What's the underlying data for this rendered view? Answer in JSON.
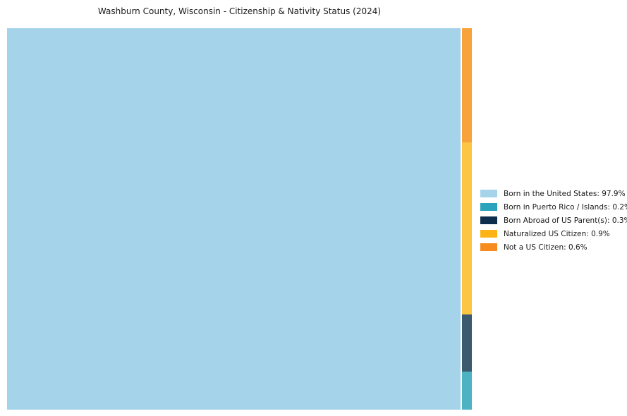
{
  "header": {
    "title": "Washburn County, Wisconsin - Citizenship & Nativity Status (2024)"
  },
  "chart_data": {
    "type": "treemap",
    "title": "Washburn County, Wisconsin - Citizenship & Nativity Status (2024)",
    "value_unit": "percent",
    "legend_position": "right",
    "background_color": "#ffffff",
    "categories": [
      {
        "label": "Born in the United States",
        "value": 97.9,
        "legend_label": "Born in the United States: 97.9%",
        "legend_color": "#a5d3e9",
        "fill_color": "#a5d3e9"
      },
      {
        "label": "Born in Puerto Rico / Islands",
        "value": 0.2,
        "legend_label": "Born in Puerto Rico / Islands: 0.2%",
        "legend_color": "#2aa3bd",
        "fill_color": "#4db3c3"
      },
      {
        "label": "Born Abroad of US Parent(s)",
        "value": 0.3,
        "legend_label": "Born Abroad of US Parent(s): 0.3%",
        "legend_color": "#0e2e4e",
        "fill_color": "#3b5a6e"
      },
      {
        "label": "Naturalized US Citizen",
        "value": 0.9,
        "legend_label": "Naturalized US Citizen: 0.9%",
        "legend_color": "#fcb316",
        "fill_color": "#fdc544"
      },
      {
        "label": "Not a US Citizen",
        "value": 0.6,
        "legend_label": "Not a US Citizen: 0.6%",
        "legend_color": "#f68b1f",
        "fill_color": "#f8a23c"
      }
    ],
    "strip_order_top_to_bottom": [
      "Not a US Citizen",
      "Naturalized US Citizen",
      "Born Abroad of US Parent(s)",
      "Born in Puerto Rico / Islands"
    ]
  }
}
